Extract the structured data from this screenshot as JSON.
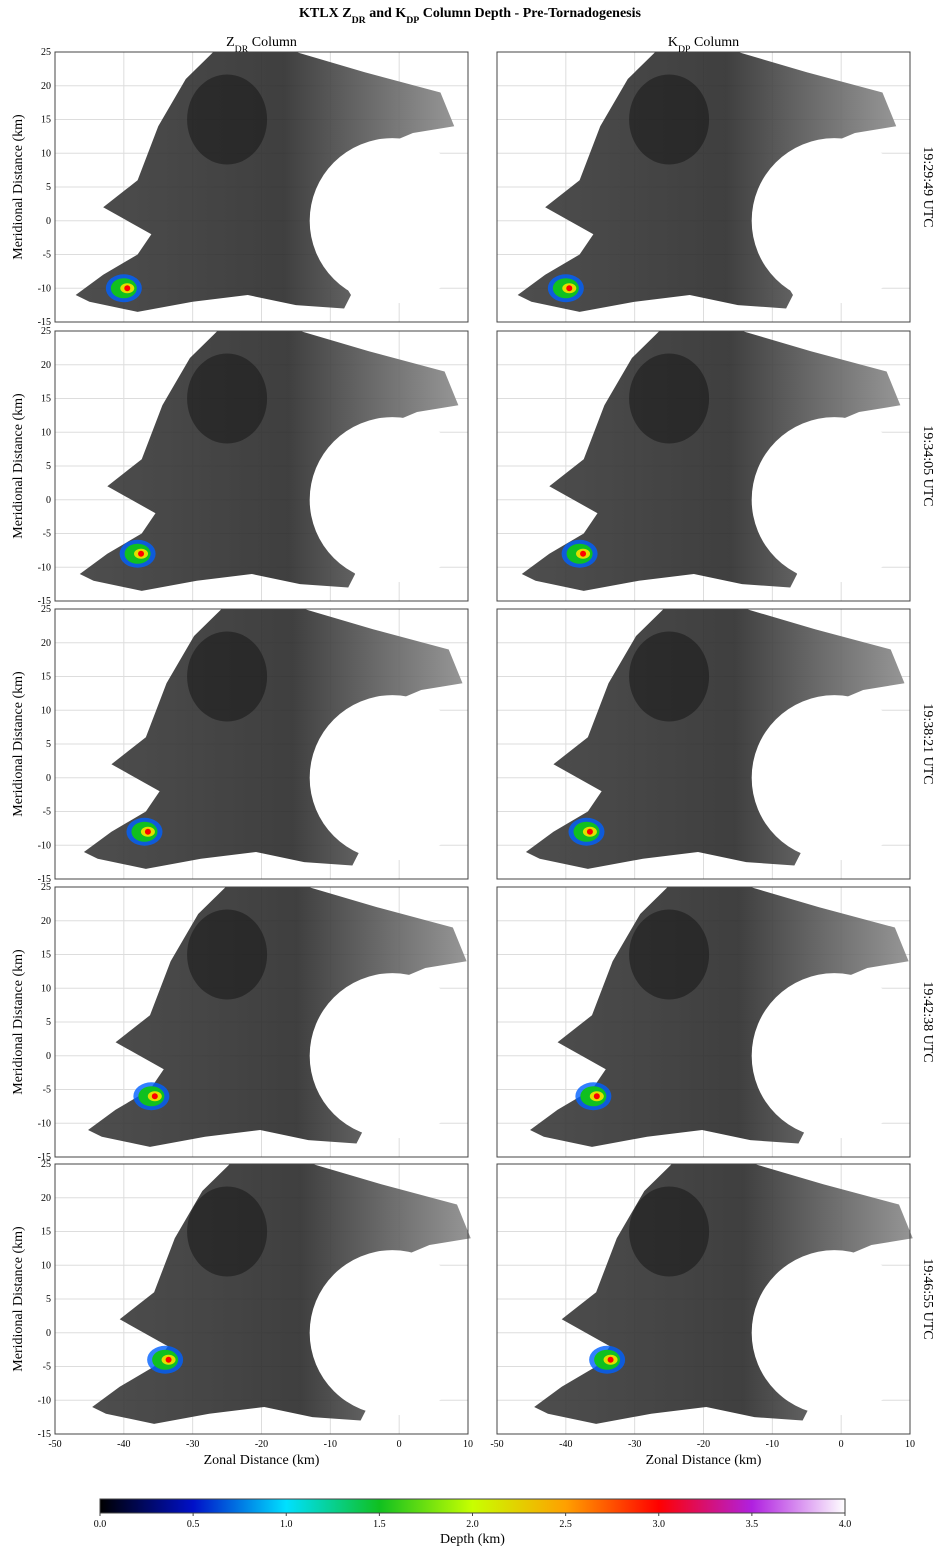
{
  "chart_data": {
    "type": "radar-panels",
    "title": [
      {
        "text": "KTLX "
      },
      {
        "text": "Z"
      },
      {
        "text": "DR",
        "sub": true
      },
      {
        "text": " and "
      },
      {
        "text": "K"
      },
      {
        "text": "DP",
        "sub": true
      },
      {
        "text": " Column Depth - Pre-Tornadogenesis"
      }
    ],
    "columns": [
      [
        {
          "text": "Z"
        },
        {
          "text": "DR",
          "sub": true
        },
        {
          "text": " Column"
        }
      ],
      [
        {
          "text": "K"
        },
        {
          "text": "DP",
          "sub": true
        },
        {
          "text": " Column"
        }
      ]
    ],
    "rows": [
      "19:29:49 UTC",
      "19:34:05 UTC",
      "19:38:21 UTC",
      "19:42:38 UTC",
      "19:46:55 UTC"
    ],
    "xlabel": "Zonal Distance (km)",
    "ylabel": "Meridional Distance (km)",
    "xlim": [
      -50,
      10
    ],
    "xticks": [
      -50,
      -40,
      -30,
      -20,
      -10,
      0,
      10
    ],
    "ylim": [
      -15,
      25
    ],
    "yticks": [
      -15,
      -10,
      -5,
      0,
      5,
      10,
      15,
      20,
      25
    ],
    "grid": true,
    "colorbar": {
      "label": "Depth (km)",
      "lim": [
        0,
        4
      ],
      "ticks": [
        {
          "value": 0,
          "label": "0.0"
        },
        {
          "value": 0.5,
          "label": "0.5"
        },
        {
          "value": 1,
          "label": "1.0"
        },
        {
          "value": 1.5,
          "label": "1.5"
        },
        {
          "value": 2,
          "label": "2.0"
        },
        {
          "value": 2.5,
          "label": "2.5"
        },
        {
          "value": 3,
          "label": "3.0"
        },
        {
          "value": 3.5,
          "label": "3.5"
        },
        {
          "value": 4,
          "label": "4.0"
        }
      ],
      "colors": [
        "#000000",
        "#0010c8",
        "#00e0ff",
        "#10c020",
        "#c8ff00",
        "#ffa000",
        "#ff0000",
        "#b020e0",
        "#ffffff"
      ]
    }
  }
}
